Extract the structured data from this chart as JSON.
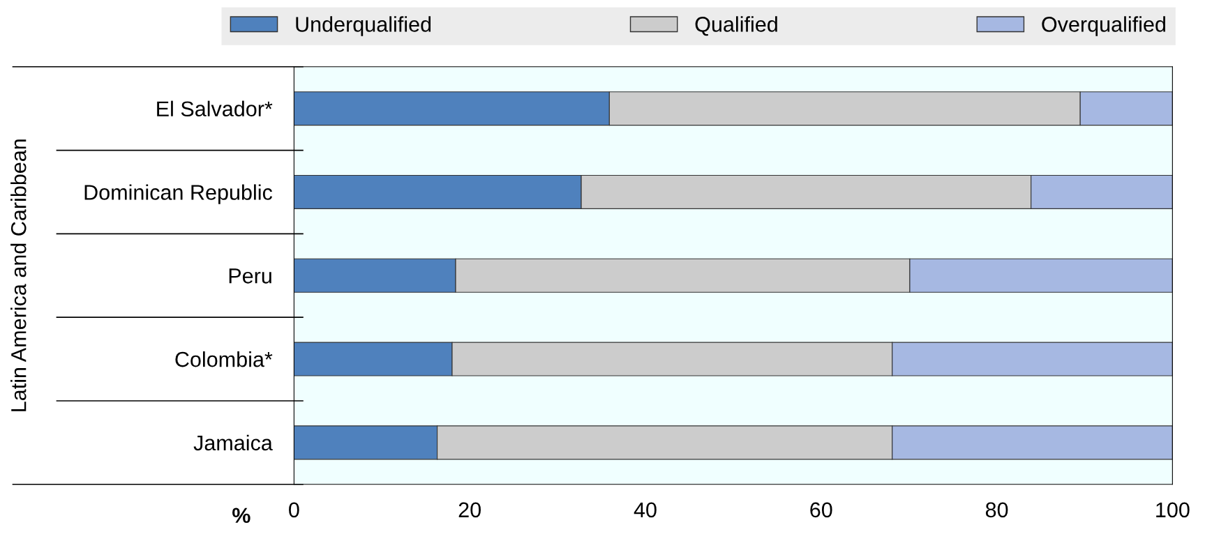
{
  "chart_data": {
    "type": "bar",
    "orientation": "horizontal",
    "stacked": true,
    "categories": [
      "El Salvador*",
      "Dominican Republic",
      "Peru",
      "Colombia*",
      "Jamaica"
    ],
    "series": [
      {
        "name": "Underqualified",
        "color": "#4f81bd",
        "values": [
          35.9,
          32.7,
          18.4,
          18.0,
          16.3
        ]
      },
      {
        "name": "Qualified",
        "color": "#cccccc",
        "values": [
          53.6,
          51.2,
          51.7,
          50.1,
          51.8
        ]
      },
      {
        "name": "Overqualified",
        "color": "#a6b8e2",
        "values": [
          10.5,
          16.1,
          29.9,
          31.9,
          31.9
        ]
      }
    ],
    "xlim": [
      0,
      100
    ],
    "xticks": [
      0,
      20,
      40,
      60,
      80,
      100
    ],
    "xlabel": "%",
    "ylabel": "Latin America and Caribbean",
    "legend": "top",
    "grid": false
  }
}
